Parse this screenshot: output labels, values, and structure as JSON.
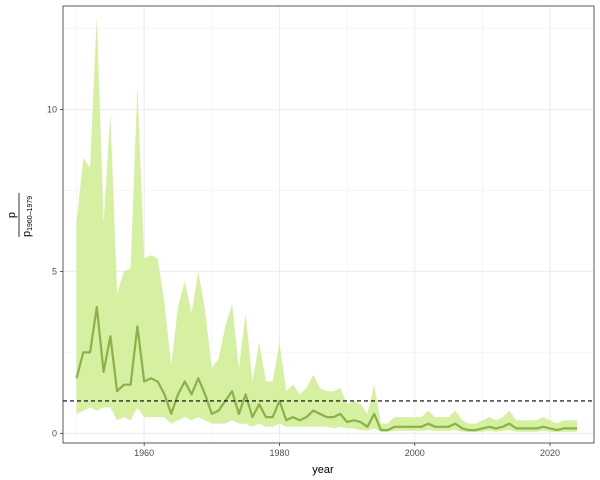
{
  "chart_data": {
    "type": "area",
    "title": "",
    "xlabel": "year",
    "ylabel": {
      "numerator": "p",
      "denominator": "p",
      "denominator_subscript": "1960–1979"
    },
    "xlim": [
      1948,
      2026.5
    ],
    "ylim": [
      -0.3,
      13.2
    ],
    "x_ticks": [
      1960,
      1980,
      2000,
      2020
    ],
    "y_ticks": [
      0,
      5,
      10
    ],
    "grid": true,
    "legend": "none",
    "reference_line": {
      "y": 1,
      "style": "dashed",
      "color": "#000000"
    },
    "colors": {
      "band": "#d4f0a0",
      "line": "#8cb04a"
    },
    "series": [
      {
        "x": [
          1950,
          1951,
          1952,
          1953,
          1954,
          1955,
          1956,
          1957,
          1958,
          1959,
          1960,
          1961,
          1962,
          1963,
          1964,
          1965,
          1966,
          1967,
          1968,
          1969,
          1970,
          1971,
          1972,
          1973,
          1974,
          1975,
          1976,
          1977,
          1978,
          1979,
          1980,
          1981,
          1982,
          1983,
          1984,
          1985,
          1986,
          1987,
          1988,
          1989,
          1990,
          1991,
          1992,
          1993,
          1994,
          1995,
          1996,
          1997,
          1998,
          1999,
          2000,
          2001,
          2002,
          2003,
          2004,
          2005,
          2006,
          2007,
          2008,
          2009,
          2010,
          2011,
          2012,
          2013,
          2014,
          2015,
          2016,
          2017,
          2018,
          2019,
          2020,
          2021,
          2022,
          2023,
          2024
        ],
        "y": [
          1.7,
          2.5,
          2.5,
          3.9,
          1.9,
          3.0,
          1.3,
          1.5,
          1.5,
          3.3,
          1.6,
          1.7,
          1.6,
          1.2,
          0.6,
          1.2,
          1.6,
          1.2,
          1.7,
          1.2,
          0.6,
          0.7,
          1.0,
          1.3,
          0.6,
          1.2,
          0.5,
          0.9,
          0.5,
          0.5,
          1.0,
          0.4,
          0.5,
          0.4,
          0.5,
          0.7,
          0.6,
          0.5,
          0.5,
          0.6,
          0.35,
          0.4,
          0.35,
          0.2,
          0.6,
          0.1,
          0.1,
          0.2,
          0.2,
          0.2,
          0.2,
          0.2,
          0.3,
          0.2,
          0.2,
          0.2,
          0.3,
          0.15,
          0.1,
          0.1,
          0.15,
          0.2,
          0.15,
          0.2,
          0.3,
          0.15,
          0.15,
          0.15,
          0.15,
          0.2,
          0.15,
          0.1,
          0.15,
          0.15,
          0.15
        ],
        "lower": [
          0.6,
          0.7,
          0.8,
          0.7,
          0.8,
          0.8,
          0.4,
          0.5,
          0.4,
          0.8,
          0.5,
          0.5,
          0.5,
          0.5,
          0.3,
          0.4,
          0.5,
          0.4,
          0.5,
          0.4,
          0.3,
          0.3,
          0.3,
          0.4,
          0.3,
          0.3,
          0.2,
          0.3,
          0.2,
          0.2,
          0.3,
          0.2,
          0.2,
          0.2,
          0.2,
          0.2,
          0.2,
          0.2,
          0.15,
          0.2,
          0.15,
          0.15,
          0.1,
          0.08,
          0.15,
          0.05,
          0.05,
          0.08,
          0.08,
          0.08,
          0.08,
          0.08,
          0.1,
          0.08,
          0.08,
          0.08,
          0.1,
          0.05,
          0.04,
          0.04,
          0.05,
          0.08,
          0.05,
          0.08,
          0.1,
          0.05,
          0.05,
          0.05,
          0.05,
          0.08,
          0.05,
          0.04,
          0.05,
          0.05,
          0.05
        ],
        "upper": [
          6.5,
          8.5,
          8.2,
          12.9,
          6.5,
          9.9,
          4.3,
          5.0,
          5.1,
          10.7,
          5.4,
          5.5,
          5.4,
          4.0,
          2.1,
          3.9,
          4.7,
          3.7,
          5.0,
          3.8,
          2.0,
          2.3,
          3.3,
          4.0,
          2.0,
          3.7,
          1.6,
          2.8,
          1.6,
          1.6,
          2.8,
          1.3,
          1.5,
          1.2,
          1.4,
          1.8,
          1.4,
          1.3,
          1.3,
          1.4,
          0.9,
          1.0,
          0.9,
          0.6,
          1.5,
          0.3,
          0.3,
          0.5,
          0.5,
          0.5,
          0.5,
          0.5,
          0.7,
          0.5,
          0.5,
          0.5,
          0.7,
          0.4,
          0.3,
          0.3,
          0.4,
          0.5,
          0.4,
          0.5,
          0.7,
          0.4,
          0.4,
          0.4,
          0.4,
          0.5,
          0.4,
          0.3,
          0.4,
          0.4,
          0.4
        ]
      }
    ]
  }
}
